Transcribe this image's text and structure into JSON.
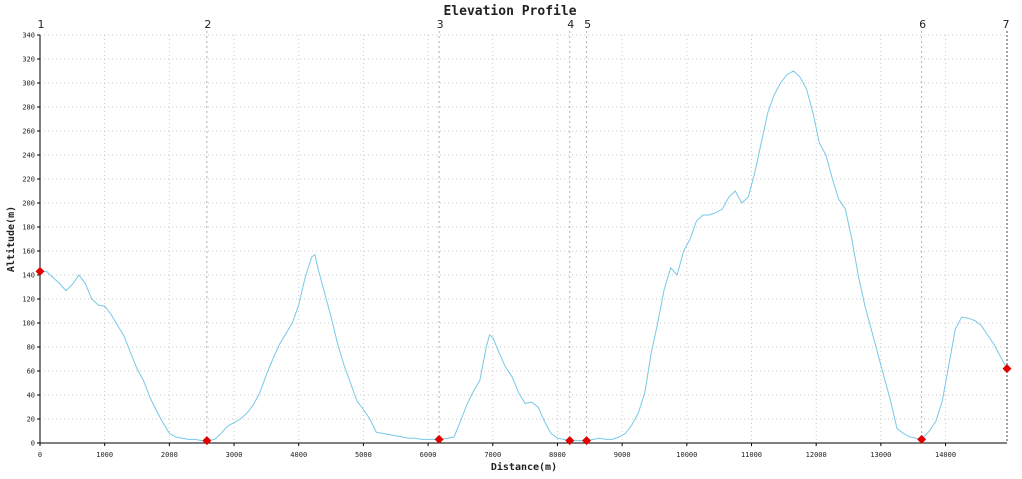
{
  "chart_data": {
    "type": "line",
    "title": "Elevation Profile",
    "xlabel": "Distance(m)",
    "ylabel": "Altitude(m)",
    "xlim": [
      0,
      14950
    ],
    "ylim": [
      0,
      340
    ],
    "x_ticks": [
      0,
      1000,
      2000,
      3000,
      4000,
      5000,
      6000,
      7000,
      8000,
      9000,
      10000,
      11000,
      12000,
      13000,
      14000
    ],
    "y_ticks": [
      0,
      20,
      40,
      60,
      80,
      100,
      120,
      140,
      160,
      180,
      200,
      220,
      240,
      260,
      280,
      300,
      320,
      340
    ],
    "grid": true,
    "line_color": "#78c8e8",
    "marker_color": "#e00000",
    "waypoints": [
      {
        "label": "1",
        "x": 0,
        "y": 143
      },
      {
        "label": "2",
        "x": 2580,
        "y": 2
      },
      {
        "label": "3",
        "x": 6170,
        "y": 3
      },
      {
        "label": "4",
        "x": 8190,
        "y": 2
      },
      {
        "label": "5",
        "x": 8450,
        "y": 2
      },
      {
        "label": "6",
        "x": 13630,
        "y": 3
      },
      {
        "label": "7",
        "x": 14950,
        "y": 62
      }
    ],
    "series": [
      {
        "points": [
          [
            0,
            143
          ],
          [
            100,
            143
          ],
          [
            200,
            138
          ],
          [
            300,
            133
          ],
          [
            400,
            127
          ],
          [
            500,
            132
          ],
          [
            600,
            140
          ],
          [
            700,
            133
          ],
          [
            800,
            120
          ],
          [
            900,
            115
          ],
          [
            1000,
            114
          ],
          [
            1100,
            107
          ],
          [
            1200,
            98
          ],
          [
            1300,
            89
          ],
          [
            1400,
            75
          ],
          [
            1500,
            62
          ],
          [
            1600,
            52
          ],
          [
            1700,
            38
          ],
          [
            1800,
            27
          ],
          [
            1900,
            17
          ],
          [
            2000,
            8
          ],
          [
            2100,
            5
          ],
          [
            2200,
            4
          ],
          [
            2300,
            3
          ],
          [
            2400,
            3
          ],
          [
            2500,
            2
          ],
          [
            2580,
            2
          ],
          [
            2700,
            3
          ],
          [
            2800,
            8
          ],
          [
            2900,
            14
          ],
          [
            3000,
            17
          ],
          [
            3100,
            20
          ],
          [
            3200,
            25
          ],
          [
            3300,
            32
          ],
          [
            3400,
            42
          ],
          [
            3500,
            57
          ],
          [
            3600,
            70
          ],
          [
            3700,
            82
          ],
          [
            3800,
            91
          ],
          [
            3900,
            100
          ],
          [
            4000,
            115
          ],
          [
            4100,
            138
          ],
          [
            4200,
            155
          ],
          [
            4250,
            157
          ],
          [
            4300,
            145
          ],
          [
            4400,
            125
          ],
          [
            4500,
            105
          ],
          [
            4600,
            83
          ],
          [
            4700,
            65
          ],
          [
            4800,
            50
          ],
          [
            4900,
            35
          ],
          [
            5000,
            28
          ],
          [
            5100,
            20
          ],
          [
            5200,
            9
          ],
          [
            5300,
            8
          ],
          [
            5400,
            7
          ],
          [
            5500,
            6
          ],
          [
            5600,
            5
          ],
          [
            5700,
            4
          ],
          [
            5800,
            4
          ],
          [
            5900,
            3
          ],
          [
            6000,
            3
          ],
          [
            6170,
            3
          ],
          [
            6300,
            4
          ],
          [
            6400,
            5
          ],
          [
            6500,
            18
          ],
          [
            6600,
            32
          ],
          [
            6700,
            43
          ],
          [
            6800,
            52
          ],
          [
            6900,
            80
          ],
          [
            6950,
            90
          ],
          [
            7000,
            88
          ],
          [
            7100,
            75
          ],
          [
            7200,
            63
          ],
          [
            7300,
            55
          ],
          [
            7400,
            42
          ],
          [
            7500,
            33
          ],
          [
            7600,
            34
          ],
          [
            7700,
            30
          ],
          [
            7800,
            18
          ],
          [
            7900,
            8
          ],
          [
            8000,
            4
          ],
          [
            8100,
            3
          ],
          [
            8190,
            2
          ],
          [
            8300,
            2
          ],
          [
            8450,
            2
          ],
          [
            8550,
            3
          ],
          [
            8650,
            4
          ],
          [
            8750,
            3
          ],
          [
            8850,
            3
          ],
          [
            8950,
            5
          ],
          [
            9050,
            8
          ],
          [
            9150,
            15
          ],
          [
            9250,
            25
          ],
          [
            9350,
            42
          ],
          [
            9450,
            75
          ],
          [
            9550,
            100
          ],
          [
            9650,
            128
          ],
          [
            9750,
            146
          ],
          [
            9850,
            140
          ],
          [
            9950,
            160
          ],
          [
            10050,
            170
          ],
          [
            10150,
            185
          ],
          [
            10250,
            190
          ],
          [
            10350,
            190
          ],
          [
            10450,
            192
          ],
          [
            10550,
            195
          ],
          [
            10650,
            205
          ],
          [
            10750,
            210
          ],
          [
            10850,
            200
          ],
          [
            10950,
            205
          ],
          [
            11050,
            225
          ],
          [
            11150,
            250
          ],
          [
            11250,
            275
          ],
          [
            11350,
            290
          ],
          [
            11450,
            300
          ],
          [
            11550,
            307
          ],
          [
            11650,
            310
          ],
          [
            11750,
            305
          ],
          [
            11850,
            295
          ],
          [
            11950,
            275
          ],
          [
            12050,
            250
          ],
          [
            12150,
            240
          ],
          [
            12250,
            220
          ],
          [
            12350,
            203
          ],
          [
            12450,
            195
          ],
          [
            12550,
            170
          ],
          [
            12650,
            140
          ],
          [
            12750,
            115
          ],
          [
            12850,
            95
          ],
          [
            12950,
            75
          ],
          [
            13050,
            55
          ],
          [
            13150,
            35
          ],
          [
            13250,
            12
          ],
          [
            13350,
            8
          ],
          [
            13450,
            5
          ],
          [
            13550,
            4
          ],
          [
            13630,
            3
          ],
          [
            13750,
            10
          ],
          [
            13850,
            18
          ],
          [
            13950,
            35
          ],
          [
            14050,
            65
          ],
          [
            14150,
            95
          ],
          [
            14250,
            105
          ],
          [
            14350,
            104
          ],
          [
            14450,
            102
          ],
          [
            14550,
            98
          ],
          [
            14650,
            90
          ],
          [
            14750,
            82
          ],
          [
            14850,
            72
          ],
          [
            14950,
            62
          ]
        ]
      }
    ]
  }
}
